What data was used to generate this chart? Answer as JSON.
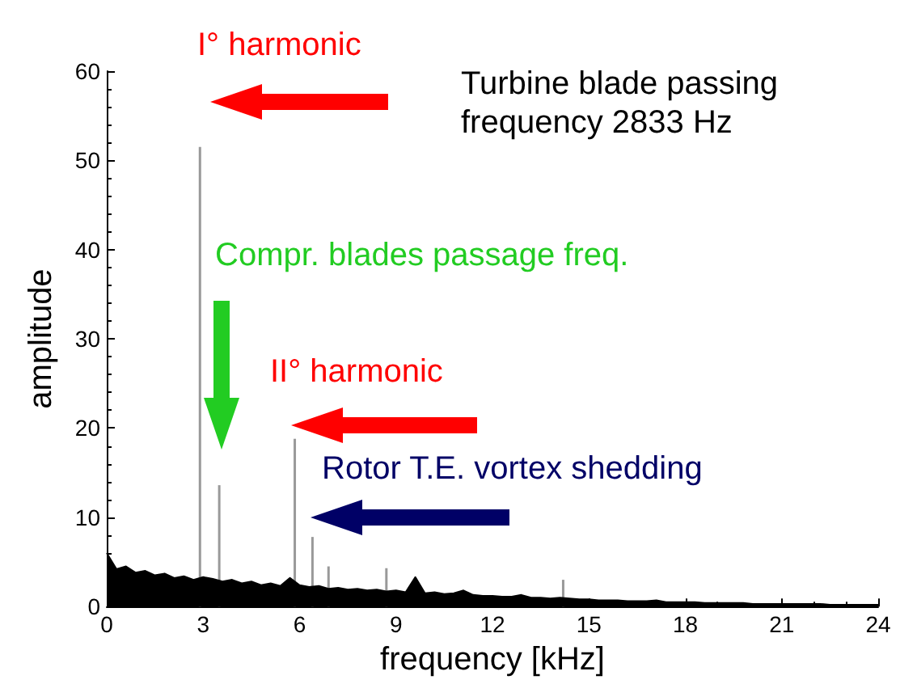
{
  "chart_data": {
    "type": "area",
    "xlabel": "frequency [kHz]",
    "ylabel": "amplitude",
    "xlim": [
      0,
      24
    ],
    "xticks": [
      0,
      3,
      6,
      9,
      12,
      15,
      18,
      21,
      24
    ],
    "ylim": [
      0,
      60
    ],
    "yticks": [
      0,
      10,
      20,
      30,
      40,
      50,
      60
    ],
    "grid": false,
    "marker": "none",
    "annotations": [
      "I° harmonic",
      "Turbine blade passing frequency 2833 Hz",
      "Compr. blades passage freq.",
      "II° harmonic",
      "Rotor T.E. vortex shedding"
    ],
    "series": [
      {
        "color": "#000000",
        "x": [
          0,
          0.3,
          0.6,
          0.9,
          1.2,
          1.5,
          1.8,
          2.1,
          2.4,
          2.7,
          3.0,
          3.3,
          3.6,
          3.9,
          4.2,
          4.5,
          4.8,
          5.1,
          5.4,
          5.7,
          6.0,
          6.3,
          6.6,
          6.9,
          7.2,
          7.5,
          7.8,
          8.1,
          8.4,
          8.7,
          9.0,
          9.3,
          9.6,
          9.9,
          10.2,
          10.5,
          10.8,
          11.1,
          11.4,
          11.7,
          12.0,
          12.3,
          12.6,
          12.9,
          13.2,
          13.5,
          13.8,
          14.1,
          14.4,
          14.7,
          15.0,
          15.3,
          15.6,
          15.9,
          16.2,
          16.5,
          16.8,
          17.1,
          17.4,
          17.7,
          18.0,
          18.3,
          18.6,
          18.9,
          19.2,
          19.5,
          19.8,
          20.1,
          20.4,
          20.7,
          21.0,
          21.3,
          21.6,
          21.9,
          22.2,
          22.5,
          22.8,
          23.1,
          23.4,
          23.7,
          24.0
        ],
        "values": [
          6,
          4.2,
          4.5,
          3.8,
          4.0,
          3.5,
          3.7,
          3.2,
          3.4,
          3.0,
          3.3,
          3.1,
          2.8,
          3.0,
          2.6,
          2.8,
          2.4,
          2.6,
          2.3,
          3.2,
          2.4,
          2.2,
          2.3,
          2.0,
          2.1,
          1.9,
          2.0,
          1.8,
          1.9,
          1.7,
          1.8,
          1.6,
          3.3,
          1.5,
          1.6,
          1.4,
          1.5,
          1.8,
          1.3,
          1.2,
          1.2,
          1.1,
          1.1,
          1.3,
          1.0,
          1.0,
          0.9,
          1.0,
          0.9,
          0.8,
          0.8,
          0.7,
          0.7,
          0.7,
          0.6,
          0.6,
          0.6,
          0.7,
          0.5,
          0.5,
          0.5,
          0.5,
          0.4,
          0.4,
          0.4,
          0.4,
          0.4,
          0.3,
          0.3,
          0.3,
          0.3,
          0.3,
          0.3,
          0.3,
          0.3,
          0.2,
          0.2,
          0.2,
          0.2,
          0.2,
          0.2
        ]
      },
      {
        "type": "bar",
        "color": "#999999",
        "x": [
          2.9,
          3.5,
          5.85,
          6.4,
          6.9,
          8.7,
          14.2
        ],
        "values": [
          51.5,
          13.6,
          18.8,
          7.8,
          4.5,
          4.3,
          3.0
        ]
      }
    ]
  }
}
